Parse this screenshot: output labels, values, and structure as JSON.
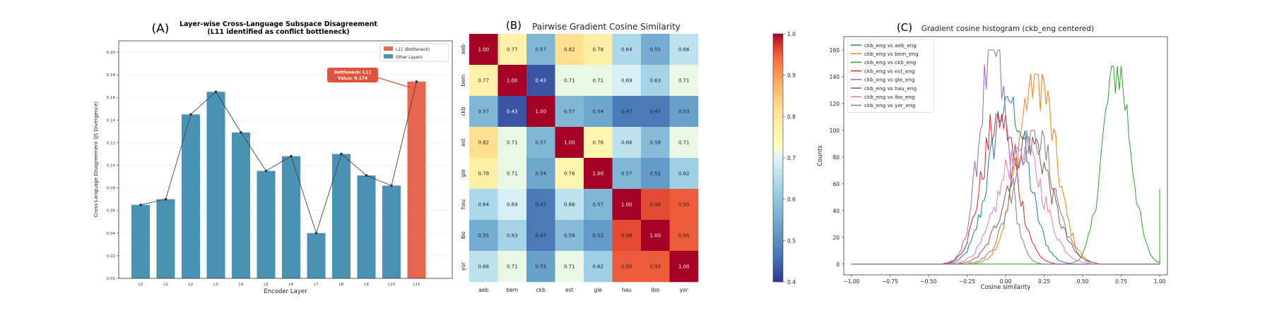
{
  "chart_data": [
    {
      "type": "bar",
      "panel_label": "(A)",
      "title": "Layer-wise Cross-Language Subspace Disagreement",
      "subtitle": "(L11 identified as conflict bottleneck)",
      "xlabel": "Encoder Layer",
      "ylabel": "Cross-Language Disagreement (JS Divergence)",
      "categories": [
        "L0",
        "L1",
        "L2",
        "L3",
        "L4",
        "L5",
        "L6",
        "L7",
        "L8",
        "L9",
        "L10",
        "L11"
      ],
      "values": [
        0.065,
        0.07,
        0.145,
        0.165,
        0.129,
        0.095,
        0.108,
        0.04,
        0.11,
        0.091,
        0.082,
        0.174
      ],
      "highlight_index": 11,
      "ylim": [
        0,
        0.21
      ],
      "yticks": [
        "0.00",
        "0.02",
        "0.04",
        "0.06",
        "0.08",
        "0.10",
        "0.12",
        "0.14",
        "0.16",
        "0.18",
        "0.20"
      ],
      "legend": [
        {
          "label": "L11 (Bottleneck)",
          "color": "#e8674e"
        },
        {
          "label": "Other Layers",
          "color": "#4a92b4"
        }
      ],
      "legend_position": "top-right",
      "annotation": {
        "line1": "Bottleneck: L11",
        "line2": "Value: 0.174"
      },
      "colors": {
        "bar": "#4a92b4",
        "highlight": "#e8674e",
        "annotation": "#e0533d"
      },
      "grid": true
    },
    {
      "type": "heatmap",
      "panel_label": "(B)",
      "title": "Pairwise Gradient Cosine Similarity",
      "labels": [
        "aeb",
        "bem",
        "ckb",
        "est",
        "gle",
        "hau",
        "ibo",
        "yor"
      ],
      "values": [
        [
          1.0,
          0.77,
          0.57,
          0.82,
          0.78,
          0.64,
          0.55,
          0.66
        ],
        [
          0.77,
          1.0,
          0.43,
          0.71,
          0.71,
          0.69,
          0.63,
          0.71
        ],
        [
          0.57,
          0.43,
          1.0,
          0.57,
          0.54,
          0.47,
          0.47,
          0.53
        ],
        [
          0.82,
          0.71,
          0.57,
          1.0,
          0.76,
          0.66,
          0.58,
          0.71
        ],
        [
          0.78,
          0.71,
          0.54,
          0.76,
          1.0,
          0.57,
          0.52,
          0.62
        ],
        [
          0.64,
          0.69,
          0.47,
          0.66,
          0.57,
          1.0,
          0.96,
          0.95
        ],
        [
          0.55,
          0.63,
          0.47,
          0.58,
          0.52,
          0.96,
          1.0,
          0.95
        ],
        [
          0.66,
          0.71,
          0.53,
          0.71,
          0.62,
          0.95,
          0.95,
          1.0
        ]
      ],
      "colormap": "RdYlBu_r",
      "vmin": 0.4,
      "vmax": 1.0,
      "colorbar_ticks": [
        "0.4",
        "0.5",
        "0.6",
        "0.7",
        "0.8",
        "0.9",
        "1.0"
      ]
    },
    {
      "type": "line",
      "panel_label": "(C)",
      "title": "Gradient cosine histogram (ckb_eng centered)",
      "xlabel": "Cosine similarity",
      "ylabel": "Counts",
      "xlim": [
        -1.05,
        1.05
      ],
      "ylim": [
        -8,
        170
      ],
      "xticks": [
        "−1.00",
        "−0.75",
        "−0.50",
        "−0.25",
        "0.00",
        "0.25",
        "0.50",
        "0.75",
        "1.00"
      ],
      "yticks": [
        "0",
        "20",
        "40",
        "60",
        "80",
        "100",
        "120",
        "140",
        "160"
      ],
      "legend_position": "top-left",
      "series": [
        {
          "name": "ckb_eng vs aeb_eng",
          "color": "#1f77b4",
          "center": 0.02,
          "width": 0.12,
          "peak": 125
        },
        {
          "name": "ckb_eng vs bem_eng",
          "color": "#ff7f0e",
          "center": 0.2,
          "width": 0.12,
          "peak": 142
        },
        {
          "name": "ckb_eng vs ckb_eng",
          "color": "#2ca02c",
          "center": 0.72,
          "width": 0.09,
          "peak": 148,
          "spike": {
            "x": 1.0,
            "y": 56
          }
        },
        {
          "name": "ckb_eng vs est_eng",
          "color": "#d62728",
          "center": -0.04,
          "width": 0.11,
          "peak": 112
        },
        {
          "name": "ckb_eng vs gle_eng",
          "color": "#9467bd",
          "center": -0.08,
          "width": 0.09,
          "peak": 160
        },
        {
          "name": "ckb_eng vs hau_eng",
          "color": "#8c564b",
          "center": 0.15,
          "width": 0.14,
          "peak": 95
        },
        {
          "name": "ckb_eng vs ibo_eng",
          "color": "#e377c2",
          "center": 0.1,
          "width": 0.14,
          "peak": 88
        },
        {
          "name": "ckb_eng vs yor_eng",
          "color": "#7f7f7f",
          "center": 0.18,
          "width": 0.13,
          "peak": 100
        }
      ]
    }
  ]
}
